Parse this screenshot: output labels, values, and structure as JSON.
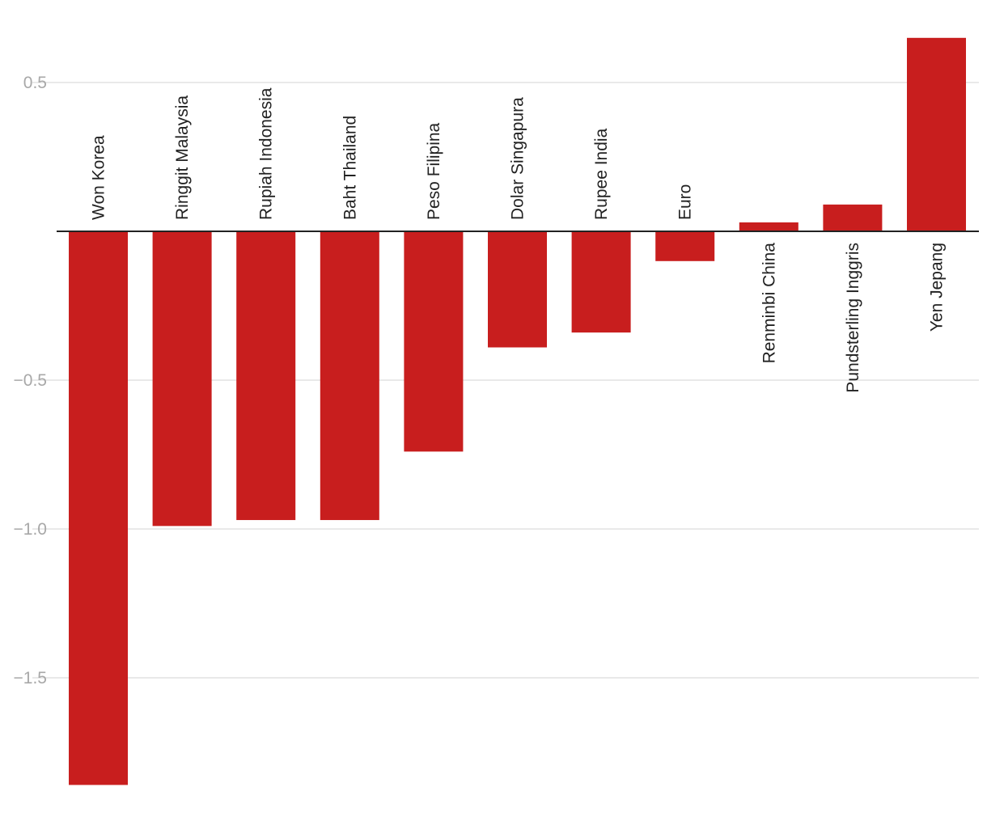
{
  "chart_data": {
    "type": "bar",
    "title": "",
    "xlabel": "",
    "ylabel": "",
    "ylim": [
      -1.86,
      0.65
    ],
    "yticks": [
      0.5,
      -0.5,
      -1.0,
      -1.5
    ],
    "ytick_labels": [
      "0.5",
      "−0.5",
      "−1.0",
      "−1.5"
    ],
    "grid": true,
    "legend": "none",
    "color": "#c81e1e",
    "categories": [
      "Won Korea",
      "Ringgit Malaysia",
      "Rupiah Indonesia",
      "Baht Thailand",
      "Peso Filipina",
      "Dolar Singapura",
      "Rupee India",
      "Euro",
      "Renminbi China",
      "Pundsterling Inggris",
      "Yen Jepang"
    ],
    "values": [
      -1.86,
      -0.99,
      -0.97,
      -0.97,
      -0.74,
      -0.39,
      -0.34,
      -0.1,
      0.03,
      0.09,
      0.65
    ]
  }
}
